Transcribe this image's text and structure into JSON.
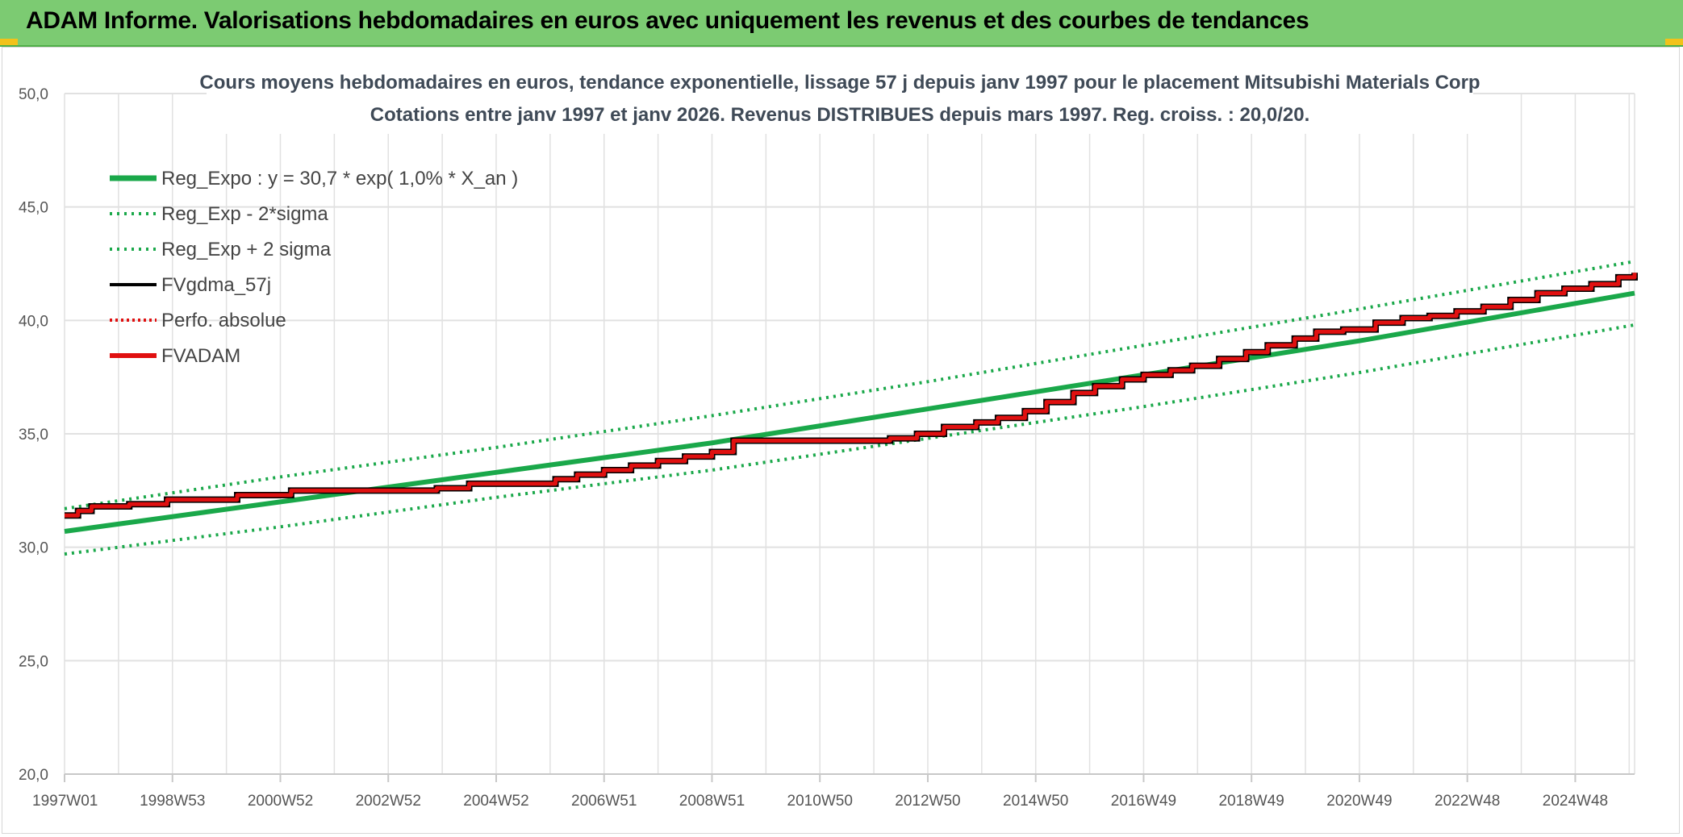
{
  "header": {
    "title": "ADAM Informe. Valorisations hebdomadaires en euros avec uniquement les revenus et des courbes de tendances"
  },
  "colors": {
    "banner": "#7ccb72",
    "trend": "#1aa84a",
    "fv57": "#000000",
    "fvadam": "#e01010",
    "perfo": "#e01010",
    "grid": "#e1e1e1"
  },
  "chart_data": {
    "type": "line",
    "title": "Cours moyens hebdomadaires en euros, tendance exponentielle, lissage 57 j depuis janv 1997 pour le placement Mitsubishi Materials Corp",
    "subtitle": "Cotations entre janv 1997 et janv 2026. Revenus DISTRIBUES depuis mars 1997. Reg. croiss. : 20,0/20.",
    "xlabel": "",
    "ylabel": "",
    "ylim": [
      20,
      50
    ],
    "xlim": [
      1997.0,
      2026.1
    ],
    "y_ticks": [
      "20,0",
      "25,0",
      "30,0",
      "35,0",
      "40,0",
      "45,0",
      "50,0"
    ],
    "x_ticks": [
      {
        "label": "1997W01",
        "x": 1997.0
      },
      {
        "label": "1998W53",
        "x": 1999.0
      },
      {
        "label": "2000W52",
        "x": 2001.0
      },
      {
        "label": "2002W52",
        "x": 2003.0
      },
      {
        "label": "2004W52",
        "x": 2005.0
      },
      {
        "label": "2006W51",
        "x": 2007.0
      },
      {
        "label": "2008W51",
        "x": 2009.0
      },
      {
        "label": "2010W50",
        "x": 2011.0
      },
      {
        "label": "2012W50",
        "x": 2013.0
      },
      {
        "label": "2014W50",
        "x": 2015.0
      },
      {
        "label": "2016W49",
        "x": 2017.0
      },
      {
        "label": "2018W49",
        "x": 2019.0
      },
      {
        "label": "2020W49",
        "x": 2021.0
      },
      {
        "label": "2022W48",
        "x": 2023.0
      },
      {
        "label": "2024W48",
        "x": 2025.0
      }
    ],
    "grid": true,
    "legend": "top-left",
    "series": [
      {
        "name": "Reg_Expo : y = 30,7 * exp( 1,0% *  X_an )",
        "style": "solid-thick",
        "x": [
          1997.0,
          2001.0,
          2005.0,
          2009.0,
          2013.0,
          2017.0,
          2021.0,
          2026.1
        ],
        "y": [
          30.7,
          32.0,
          33.3,
          34.6,
          36.1,
          37.6,
          39.1,
          41.2
        ]
      },
      {
        "name": "Reg_Exp - 2*sigma",
        "style": "dotted",
        "x": [
          1997.0,
          2001.0,
          2005.0,
          2009.0,
          2013.0,
          2017.0,
          2021.0,
          2026.1
        ],
        "y": [
          29.7,
          30.9,
          32.2,
          33.4,
          34.8,
          36.2,
          37.7,
          39.8
        ]
      },
      {
        "name": "Reg_Exp + 2 sigma",
        "style": "dotted",
        "x": [
          1997.0,
          2001.0,
          2005.0,
          2009.0,
          2013.0,
          2017.0,
          2021.0,
          2026.1
        ],
        "y": [
          31.7,
          33.1,
          34.4,
          35.8,
          37.3,
          38.9,
          40.5,
          42.6
        ]
      },
      {
        "name": "FVgdma_57j",
        "style": "solid-black",
        "x": [],
        "y": []
      },
      {
        "name": "Perfo. absolue",
        "style": "dotted-red",
        "x": [],
        "y": []
      },
      {
        "name": "FVADAM",
        "style": "step-red",
        "x": [
          1997.0,
          1997.25,
          1997.5,
          1998.2,
          1998.9,
          2000.2,
          2001.2,
          2003.9,
          2004.5,
          2006.1,
          2006.5,
          2007.0,
          2007.5,
          2008.0,
          2008.5,
          2009.0,
          2009.4,
          2010.3,
          2012.3,
          2012.8,
          2013.3,
          2013.9,
          2014.3,
          2014.8,
          2015.2,
          2015.7,
          2016.1,
          2016.6,
          2017.0,
          2017.5,
          2017.9,
          2018.4,
          2018.9,
          2019.3,
          2019.8,
          2020.2,
          2020.7,
          2021.3,
          2021.8,
          2022.3,
          2022.8,
          2023.3,
          2023.8,
          2024.3,
          2024.8,
          2025.3,
          2025.8,
          2026.1
        ],
        "y": [
          31.4,
          31.6,
          31.8,
          31.9,
          32.1,
          32.3,
          32.5,
          32.6,
          32.8,
          33.0,
          33.2,
          33.4,
          33.6,
          33.8,
          34.0,
          34.2,
          34.7,
          34.7,
          34.8,
          35.0,
          35.3,
          35.5,
          35.7,
          36.0,
          36.4,
          36.8,
          37.1,
          37.4,
          37.6,
          37.8,
          38.0,
          38.3,
          38.6,
          38.9,
          39.2,
          39.5,
          39.6,
          39.9,
          40.1,
          40.2,
          40.4,
          40.6,
          40.9,
          41.2,
          41.4,
          41.6,
          41.9,
          42.1
        ]
      }
    ]
  }
}
